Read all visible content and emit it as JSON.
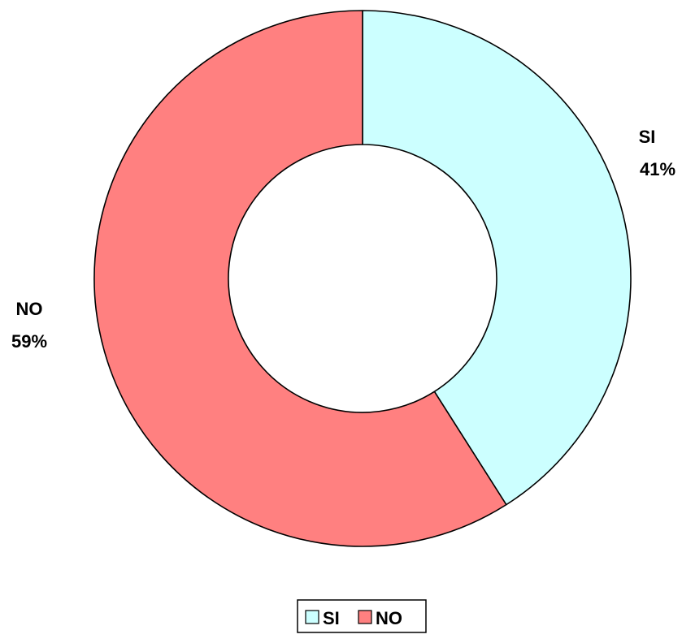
{
  "chart_data": {
    "type": "pie",
    "variant": "donut",
    "categories": [
      "SI",
      "NO"
    ],
    "values": [
      41,
      59
    ],
    "unit": "%",
    "colors": [
      "#ccffff",
      "#ff8080"
    ],
    "data_labels": [
      {
        "category": "SI",
        "percent": "41%"
      },
      {
        "category": "NO",
        "percent": "59%"
      }
    ],
    "legend": {
      "placement": "bottom",
      "items": [
        "SI",
        "NO"
      ]
    },
    "title": "",
    "start_angle": "top",
    "direction": "clockwise"
  }
}
